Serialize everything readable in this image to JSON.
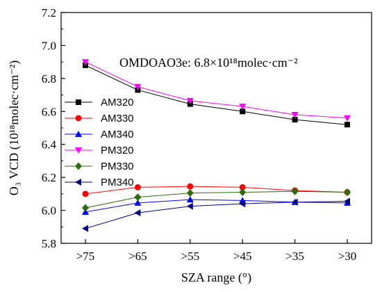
{
  "chart_data": {
    "type": "line",
    "title": "",
    "xlabel": "SZA range (°)",
    "ylabel": "O₃ VCD (10¹⁸molec·cm⁻²)",
    "annotation": "OMDOAO3e: 6.8×10¹⁸molec·cm⁻²",
    "categories": [
      ">75",
      ">65",
      ">55",
      ">45",
      ">35",
      ">30"
    ],
    "ylim": [
      5.8,
      7.2
    ],
    "yticks": [
      "5.8",
      "6.0",
      "6.2",
      "6.4",
      "6.6",
      "6.8",
      "7.0",
      "7.2"
    ],
    "legend_position": "left",
    "series": [
      {
        "name": "AM320",
        "color": "#000000",
        "marker": "square",
        "values": [
          6.88,
          6.73,
          6.645,
          6.6,
          6.55,
          6.52
        ]
      },
      {
        "name": "AM330",
        "color": "#ff0000",
        "marker": "circle",
        "values": [
          6.1,
          6.14,
          6.145,
          6.14,
          6.12,
          6.11
        ]
      },
      {
        "name": "AM340",
        "color": "#0000ff",
        "marker": "triangle-up",
        "values": [
          5.99,
          6.045,
          6.065,
          6.06,
          6.05,
          6.045
        ]
      },
      {
        "name": "PM320",
        "color": "#ff00ff",
        "marker": "triangle-down",
        "values": [
          6.9,
          6.75,
          6.665,
          6.63,
          6.58,
          6.56
        ]
      },
      {
        "name": "PM330",
        "color": "#2e6b0e",
        "marker": "diamond",
        "values": [
          6.015,
          6.08,
          6.105,
          6.11,
          6.115,
          6.11
        ]
      },
      {
        "name": "PM340",
        "color": "#000080",
        "marker": "triangle-left",
        "values": [
          5.89,
          5.985,
          6.025,
          6.04,
          6.05,
          6.055
        ]
      }
    ]
  }
}
